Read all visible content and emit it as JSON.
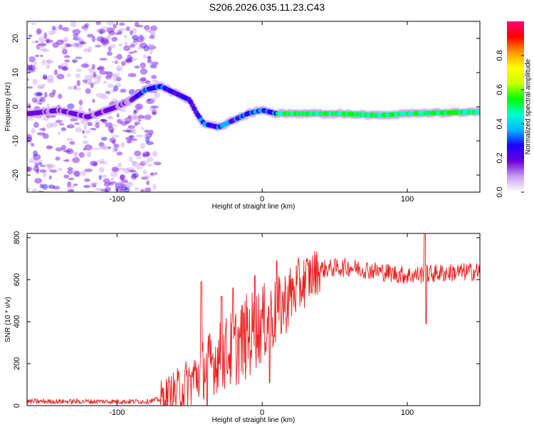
{
  "title": "S206.2026.035.11.23.C43",
  "chart_data": [
    {
      "type": "heatmap",
      "name": "spectrogram",
      "xlabel": "Height of straight line (km)",
      "ylabel": "Frequency (Hz)",
      "xlim": [
        -162,
        150
      ],
      "ylim": [
        -25,
        25
      ],
      "xticks": [
        -100,
        0,
        100
      ],
      "yticks": [
        -20,
        -10,
        0,
        10,
        20
      ],
      "ridge": [
        {
          "x": -160,
          "y": -2
        },
        {
          "x": -140,
          "y": -1
        },
        {
          "x": -120,
          "y": -3
        },
        {
          "x": -100,
          "y": 0
        },
        {
          "x": -90,
          "y": 2
        },
        {
          "x": -80,
          "y": 5
        },
        {
          "x": -70,
          "y": 6
        },
        {
          "x": -60,
          "y": 4
        },
        {
          "x": -50,
          "y": 2
        },
        {
          "x": -45,
          "y": -2
        },
        {
          "x": -40,
          "y": -5
        },
        {
          "x": -30,
          "y": -6
        },
        {
          "x": -20,
          "y": -4
        },
        {
          "x": -10,
          "y": -2
        },
        {
          "x": 0,
          "y": -1
        },
        {
          "x": 10,
          "y": -2
        },
        {
          "x": 50,
          "y": -2
        },
        {
          "x": 80,
          "y": -2.5
        },
        {
          "x": 100,
          "y": -2
        },
        {
          "x": 150,
          "y": -1.5
        }
      ],
      "colorbar": {
        "label": "Normalized spectral amplitude",
        "range": [
          0,
          1
        ],
        "ticks": [
          "0.0",
          "0.2",
          "0.4",
          "0.6",
          "0.8"
        ],
        "colors": [
          "#ffffff",
          "#c9a0f0",
          "#6a00e0",
          "#1d00ff",
          "#00b7ff",
          "#00ffd0",
          "#00ff00",
          "#c8ff00",
          "#ffff00",
          "#ff9900",
          "#ff0000",
          "#ff007a"
        ]
      }
    },
    {
      "type": "line",
      "name": "snr",
      "xlabel": "Height of straight line (km)",
      "ylabel": "SNR (10 * v/v)",
      "xlim": [
        -162,
        150
      ],
      "ylim": [
        0,
        820
      ],
      "xticks": [
        -100,
        0,
        100
      ],
      "yticks": [
        0,
        200,
        400,
        600,
        800
      ],
      "color": "#ee1c1c",
      "trend": [
        {
          "x": -162,
          "y": 20
        },
        {
          "x": -80,
          "y": 20
        },
        {
          "x": -70,
          "y": 30
        },
        {
          "x": -60,
          "y": 60
        },
        {
          "x": -50,
          "y": 110
        },
        {
          "x": -40,
          "y": 180
        },
        {
          "x": -30,
          "y": 230
        },
        {
          "x": -20,
          "y": 270
        },
        {
          "x": -10,
          "y": 330
        },
        {
          "x": 0,
          "y": 390
        },
        {
          "x": 10,
          "y": 440
        },
        {
          "x": 20,
          "y": 530
        },
        {
          "x": 30,
          "y": 600
        },
        {
          "x": 40,
          "y": 650
        },
        {
          "x": 60,
          "y": 660
        },
        {
          "x": 80,
          "y": 640
        },
        {
          "x": 100,
          "y": 620
        },
        {
          "x": 120,
          "y": 630
        },
        {
          "x": 150,
          "y": 640
        }
      ],
      "spikes": [
        {
          "x": -42,
          "y": 590
        },
        {
          "x": -38,
          "y": 0
        },
        {
          "x": -28,
          "y": 520
        },
        {
          "x": -20,
          "y": 560
        },
        {
          "x": -5,
          "y": 620
        },
        {
          "x": 5,
          "y": 110
        },
        {
          "x": 10,
          "y": 690
        },
        {
          "x": 112,
          "y": 820
        },
        {
          "x": 113,
          "y": 390
        }
      ]
    }
  ]
}
